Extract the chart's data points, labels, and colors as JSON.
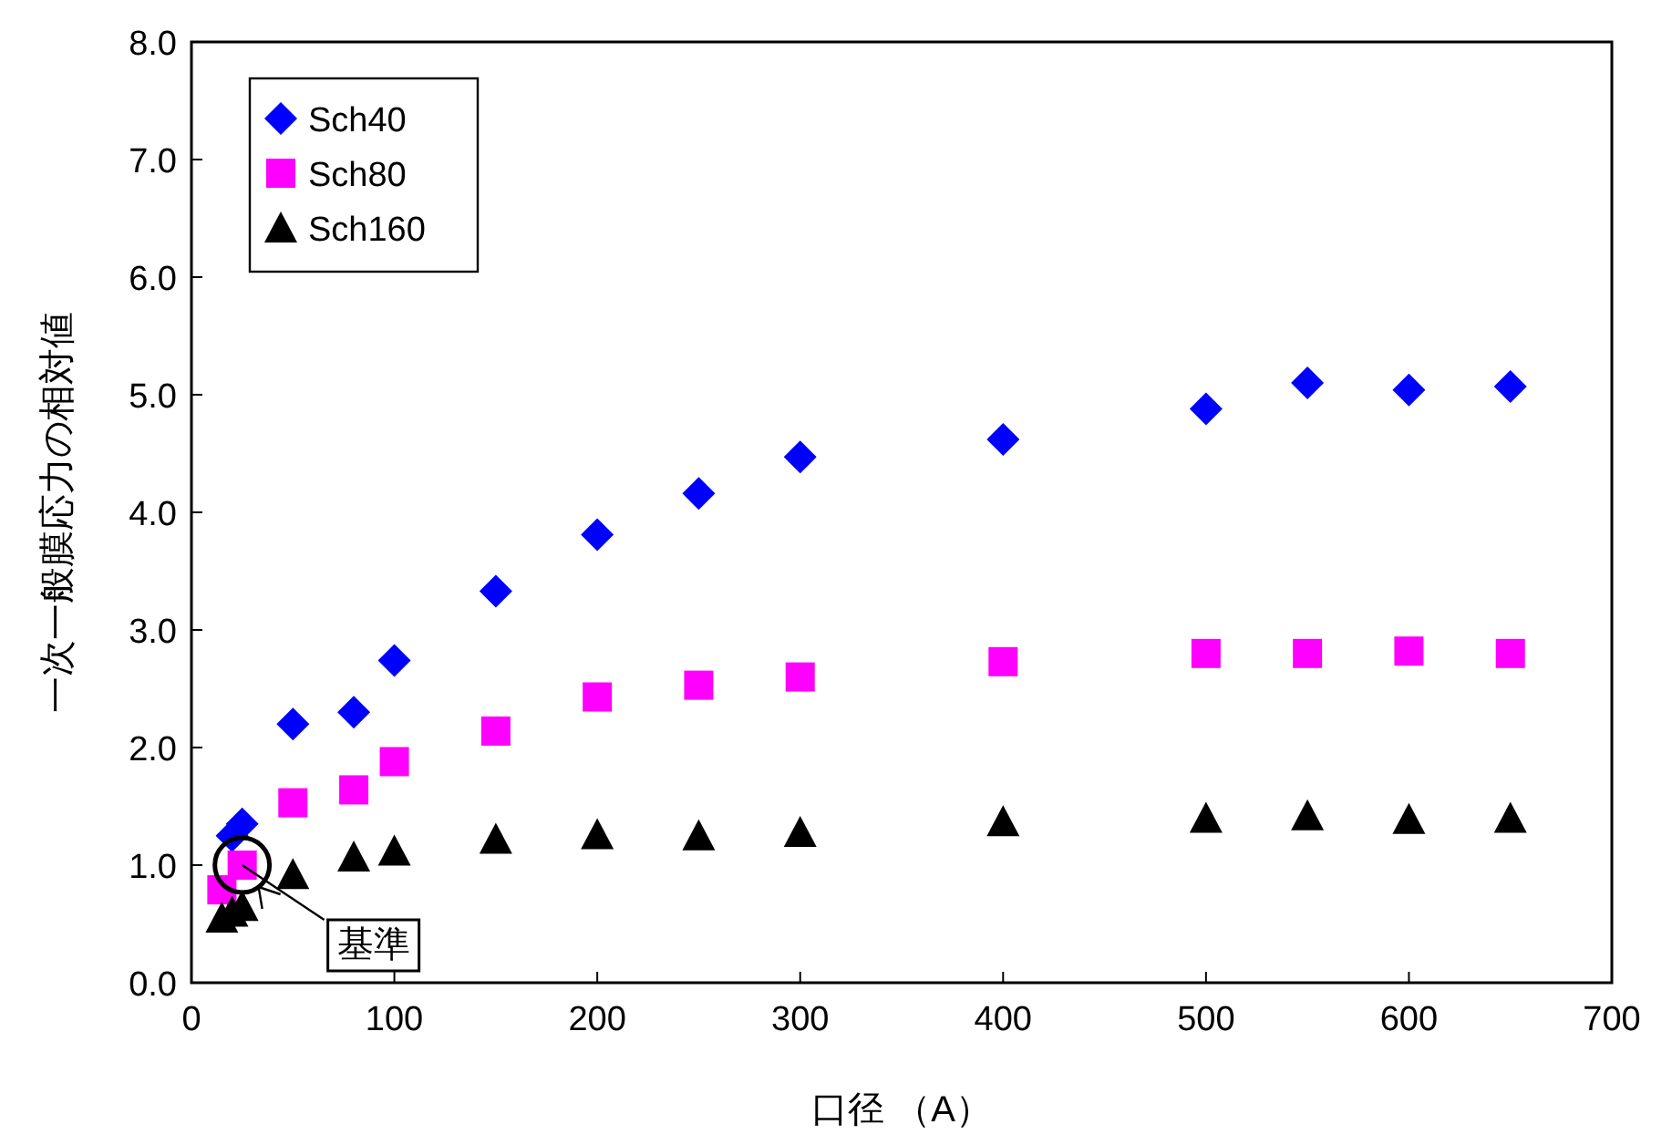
{
  "chart_data": {
    "type": "scatter",
    "xlabel": "口径 （A）",
    "ylabel": "一次一般膜応力の相対値",
    "x": [
      15,
      20,
      25,
      50,
      80,
      100,
      150,
      200,
      250,
      300,
      400,
      500,
      550,
      600,
      650
    ],
    "series": [
      {
        "name": "Sch40",
        "color": "#0000ff",
        "marker": "diamond",
        "values": [
          null,
          1.25,
          1.35,
          2.2,
          2.3,
          2.74,
          3.33,
          3.81,
          4.16,
          4.47,
          4.62,
          4.88,
          5.1,
          5.04,
          5.07
        ]
      },
      {
        "name": "Sch80",
        "color": "#ff00ff",
        "marker": "square",
        "values": [
          0.79,
          null,
          1.0,
          1.53,
          1.64,
          1.88,
          2.14,
          2.43,
          2.53,
          2.6,
          2.73,
          2.8,
          2.8,
          2.82,
          2.8
        ]
      },
      {
        "name": "Sch160",
        "color": "#000000",
        "marker": "triangle",
        "values": [
          0.55,
          0.6,
          0.65,
          0.92,
          1.07,
          1.12,
          1.22,
          1.26,
          1.25,
          1.28,
          1.37,
          1.4,
          1.42,
          1.39,
          1.4
        ]
      }
    ],
    "annotations": [
      {
        "text": "基準",
        "x": 25,
        "y": 1.0
      }
    ],
    "xlim": [
      0,
      700
    ],
    "xticks": [
      0,
      100,
      200,
      300,
      400,
      500,
      600,
      700
    ],
    "ylim": [
      0,
      8
    ],
    "yticks": [
      {
        "value": 0,
        "label": "0.0"
      },
      {
        "value": 1,
        "label": "1.0"
      },
      {
        "value": 2,
        "label": "2.0"
      },
      {
        "value": 3,
        "label": "3.0"
      },
      {
        "value": 4,
        "label": "4.0"
      },
      {
        "value": 5,
        "label": "5.0"
      },
      {
        "value": 6,
        "label": "6.0"
      },
      {
        "value": 7,
        "label": "7.0"
      },
      {
        "value": 8,
        "label": "8.0"
      }
    ],
    "grid": false,
    "legend": "top left"
  }
}
